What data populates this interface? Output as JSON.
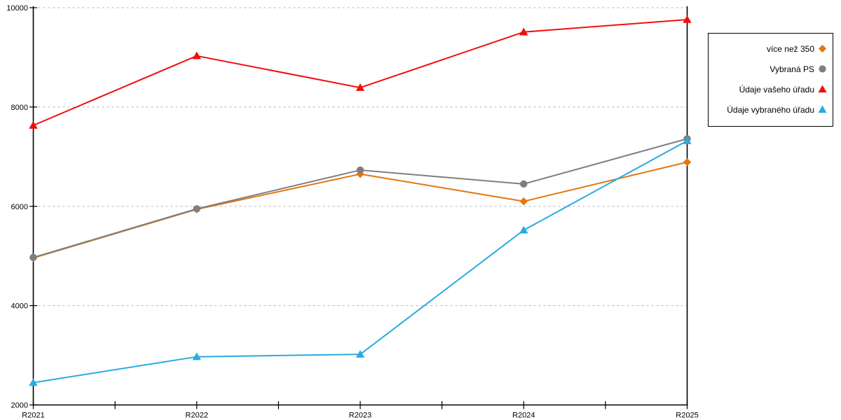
{
  "chart_data": {
    "type": "line",
    "categories": [
      "R2021",
      "R2022",
      "R2023",
      "R2024",
      "R2025"
    ],
    "series": [
      {
        "name": "více než 350",
        "marker": "diamond",
        "color": "#E5750F",
        "values": [
          4960,
          5940,
          6650,
          6100,
          6890
        ]
      },
      {
        "name": "Vybraná PS",
        "marker": "circle",
        "color": "#7F7F7F",
        "values": [
          4970,
          5950,
          6730,
          6450,
          7360
        ]
      },
      {
        "name": "Údaje vašeho úřadu",
        "marker": "triangle",
        "color": "#F20D0D",
        "values": [
          7630,
          9030,
          8390,
          9510,
          9760
        ]
      },
      {
        "name": "Údaje vybraného úřadu",
        "marker": "triangle",
        "color": "#29ABE2",
        "values": [
          2450,
          2970,
          3020,
          5520,
          7320
        ]
      }
    ],
    "title": "",
    "xlabel": "",
    "ylabel": "",
    "ylim": [
      2000,
      10000
    ],
    "ytick_step": 2000,
    "ytick_labels": [
      "2000",
      "4000",
      "6000",
      "8000",
      "10000"
    ],
    "xtick_labels": [
      "R2021",
      "R2022",
      "R2023",
      "R2024",
      "R2025"
    ],
    "grid": "horizontal-dotted",
    "grid_color": "#B3B3B3",
    "axis_color": "#000000",
    "legend_position": "top-right"
  }
}
